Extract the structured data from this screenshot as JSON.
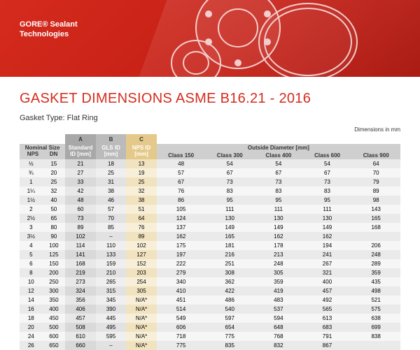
{
  "brand_line1": "GORE® Sealant",
  "brand_line2": "Technologies",
  "title": "GASKET DIMENSIONS ASME B16.21 - 2016",
  "subtitle": "Gasket Type: Flat Ring",
  "units_note": "Dimensions in mm",
  "colors": {
    "brand_red": "#d52b1e",
    "colA_bg": "#a8a8a8",
    "colB_bg": "#bbbbbb",
    "colC_bg": "#e5c98a"
  },
  "header": {
    "nominal_title": "Nominal Size",
    "nps": "NPS",
    "dn": "DN",
    "A_letter": "A",
    "B_letter": "B",
    "C_letter": "C",
    "A_label": "Standard ID [mm]",
    "B_label": "GLS ID [mm]",
    "C_label": "NPS ID [mm]",
    "od_title": "Outside Diameter [mm]",
    "class150": "Class 150",
    "class300": "Class 300",
    "class400": "Class 400",
    "class600": "Class 600",
    "class900": "Class 900"
  },
  "rows": [
    {
      "nps": "½",
      "dn": "15",
      "A": "21",
      "B": "18",
      "C": "13",
      "c150": "48",
      "c300": "54",
      "c400": "54",
      "c600": "54",
      "c900": "64"
    },
    {
      "nps": "¾",
      "dn": "20",
      "A": "27",
      "B": "25",
      "C": "19",
      "c150": "57",
      "c300": "67",
      "c400": "67",
      "c600": "67",
      "c900": "70"
    },
    {
      "nps": "1",
      "dn": "25",
      "A": "33",
      "B": "31",
      "C": "25",
      "c150": "67",
      "c300": "73",
      "c400": "73",
      "c600": "73",
      "c900": "79"
    },
    {
      "nps": "1¼",
      "dn": "32",
      "A": "42",
      "B": "38",
      "C": "32",
      "c150": "76",
      "c300": "83",
      "c400": "83",
      "c600": "83",
      "c900": "89"
    },
    {
      "nps": "1½",
      "dn": "40",
      "A": "48",
      "B": "46",
      "C": "38",
      "c150": "86",
      "c300": "95",
      "c400": "95",
      "c600": "95",
      "c900": "98"
    },
    {
      "nps": "2",
      "dn": "50",
      "A": "60",
      "B": "57",
      "C": "51",
      "c150": "105",
      "c300": "111",
      "c400": "111",
      "c600": "111",
      "c900": "143"
    },
    {
      "nps": "2½",
      "dn": "65",
      "A": "73",
      "B": "70",
      "C": "64",
      "c150": "124",
      "c300": "130",
      "c400": "130",
      "c600": "130",
      "c900": "165"
    },
    {
      "nps": "3",
      "dn": "80",
      "A": "89",
      "B": "85",
      "C": "76",
      "c150": "137",
      "c300": "149",
      "c400": "149",
      "c600": "149",
      "c900": "168"
    },
    {
      "nps": "3½",
      "dn": "90",
      "A": "102",
      "B": "–",
      "C": "89",
      "c150": "162",
      "c300": "165",
      "c400": "162",
      "c600": "162",
      "c900": ""
    },
    {
      "nps": "4",
      "dn": "100",
      "A": "114",
      "B": "110",
      "C": "102",
      "c150": "175",
      "c300": "181",
      "c400": "178",
      "c600": "194",
      "c900": "206"
    },
    {
      "nps": "5",
      "dn": "125",
      "A": "141",
      "B": "133",
      "C": "127",
      "c150": "197",
      "c300": "216",
      "c400": "213",
      "c600": "241",
      "c900": "248"
    },
    {
      "nps": "6",
      "dn": "150",
      "A": "168",
      "B": "159",
      "C": "152",
      "c150": "222",
      "c300": "251",
      "c400": "248",
      "c600": "267",
      "c900": "289"
    },
    {
      "nps": "8",
      "dn": "200",
      "A": "219",
      "B": "210",
      "C": "203",
      "c150": "279",
      "c300": "308",
      "c400": "305",
      "c600": "321",
      "c900": "359"
    },
    {
      "nps": "10",
      "dn": "250",
      "A": "273",
      "B": "265",
      "C": "254",
      "c150": "340",
      "c300": "362",
      "c400": "359",
      "c600": "400",
      "c900": "435"
    },
    {
      "nps": "12",
      "dn": "300",
      "A": "324",
      "B": "315",
      "C": "305",
      "c150": "410",
      "c300": "422",
      "c400": "419",
      "c600": "457",
      "c900": "498"
    },
    {
      "nps": "14",
      "dn": "350",
      "A": "356",
      "B": "345",
      "C": "N/A*",
      "c150": "451",
      "c300": "486",
      "c400": "483",
      "c600": "492",
      "c900": "521"
    },
    {
      "nps": "16",
      "dn": "400",
      "A": "406",
      "B": "390",
      "C": "N/A*",
      "c150": "514",
      "c300": "540",
      "c400": "537",
      "c600": "565",
      "c900": "575"
    },
    {
      "nps": "18",
      "dn": "450",
      "A": "457",
      "B": "445",
      "C": "N/A*",
      "c150": "549",
      "c300": "597",
      "c400": "594",
      "c600": "613",
      "c900": "638"
    },
    {
      "nps": "20",
      "dn": "500",
      "A": "508",
      "B": "495",
      "C": "N/A*",
      "c150": "606",
      "c300": "654",
      "c400": "648",
      "c600": "683",
      "c900": "699"
    },
    {
      "nps": "24",
      "dn": "600",
      "A": "610",
      "B": "595",
      "C": "N/A*",
      "c150": "718",
      "c300": "775",
      "c400": "768",
      "c600": "791",
      "c900": "838"
    },
    {
      "nps": "26",
      "dn": "650",
      "A": "660",
      "B": "–",
      "C": "N/A*",
      "c150": "775",
      "c300": "835",
      "c400": "832",
      "c600": "867",
      "c900": ""
    }
  ]
}
